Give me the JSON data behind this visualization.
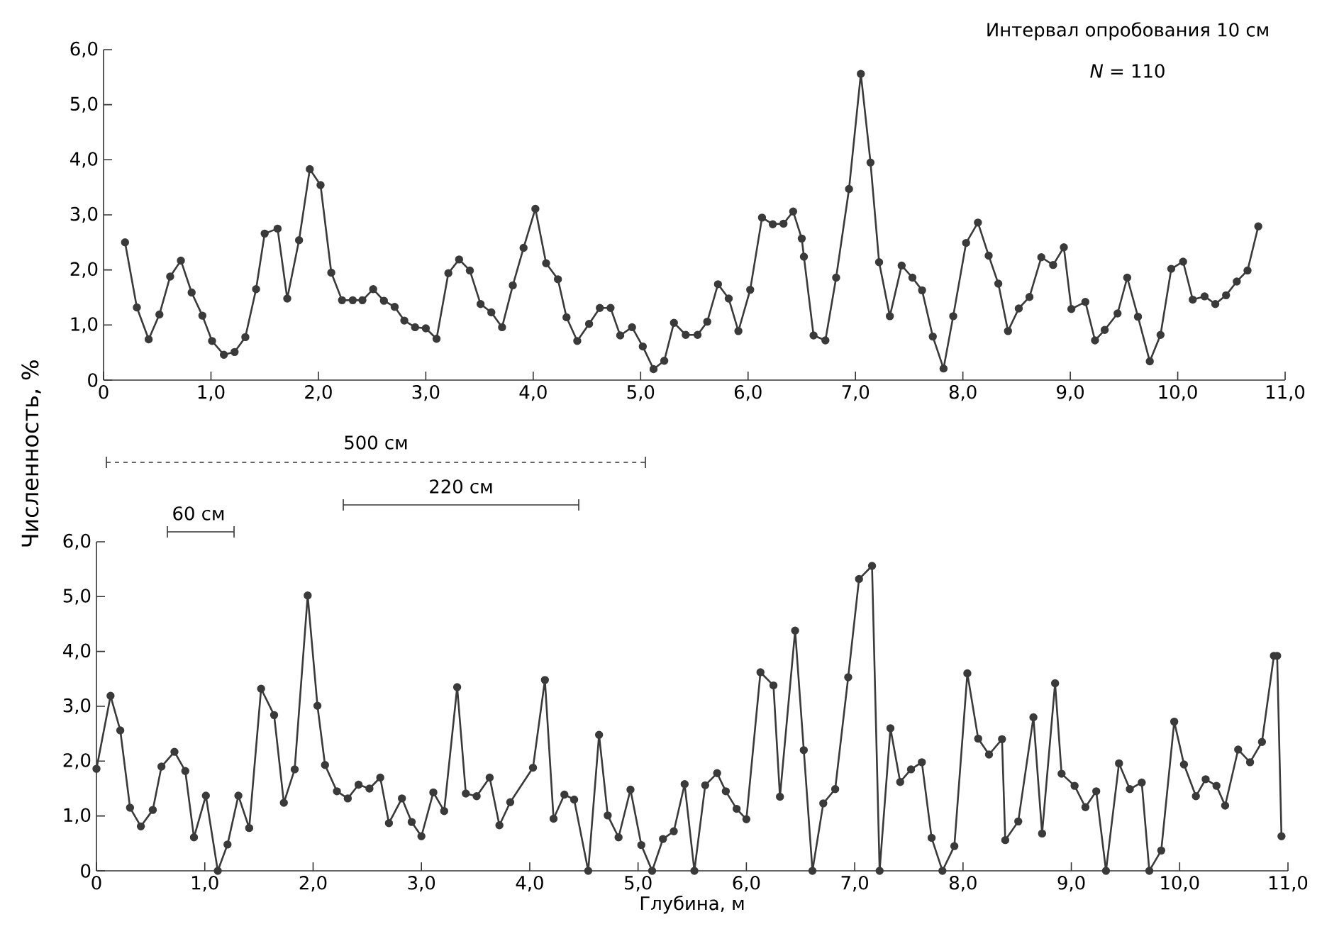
{
  "chart_data": [
    {
      "type": "line",
      "ylabel": "Численность, %",
      "marker": "circle",
      "line_style": "solid",
      "annotations": [
        "Интервал опробования 10 см",
        "*N* = 110",
        "500 см",
        "220 см"
      ],
      "x": [
        0.2,
        0.31,
        0.42,
        0.52,
        0.62,
        0.72,
        0.82,
        0.92,
        1.01,
        1.12,
        1.22,
        1.32,
        1.42,
        1.5,
        1.62,
        1.71,
        1.82,
        1.92,
        2.02,
        2.12,
        2.22,
        2.32,
        2.41,
        2.51,
        2.61,
        2.71,
        2.8,
        2.9,
        3.0,
        3.1,
        3.21,
        3.31,
        3.41,
        3.51,
        3.61,
        3.71,
        3.81,
        3.91,
        4.02,
        4.12,
        4.23,
        4.31,
        4.41,
        4.52,
        4.62,
        4.72,
        4.81,
        4.92,
        5.02,
        5.12,
        5.22,
        5.31,
        5.42,
        5.53,
        5.62,
        5.72,
        5.82,
        5.91,
        6.02,
        6.13,
        6.23,
        6.33,
        6.42,
        6.5,
        6.52,
        6.61,
        6.72,
        6.82,
        6.94,
        7.05,
        7.14,
        7.22,
        7.32,
        7.43,
        7.53,
        7.62,
        7.72,
        7.82,
        7.91,
        8.03,
        8.14,
        8.24,
        8.33,
        8.42,
        8.52,
        8.62,
        8.73,
        8.84,
        8.94,
        9.01,
        9.14,
        9.23,
        9.32,
        9.44,
        9.53,
        9.63,
        9.74,
        9.84,
        9.94,
        10.05,
        10.14,
        10.25,
        10.35,
        10.45,
        10.55,
        10.65,
        10.75
      ],
      "series": [
        {
          "color": "#3a3a3a",
          "values": [
            2.5,
            1.32,
            0.74,
            1.19,
            1.88,
            2.17,
            1.59,
            1.17,
            0.71,
            0.46,
            0.51,
            0.78,
            1.65,
            2.66,
            2.75,
            1.48,
            2.54,
            3.83,
            3.54,
            1.95,
            1.45,
            1.45,
            1.45,
            1.65,
            1.44,
            1.33,
            1.08,
            0.96,
            0.94,
            0.75,
            1.94,
            2.19,
            1.99,
            1.38,
            1.23,
            0.96,
            1.72,
            2.4,
            3.11,
            2.12,
            1.83,
            1.14,
            0.71,
            1.02,
            1.31,
            1.31,
            0.81,
            0.96,
            0.61,
            0.2,
            0.35,
            1.04,
            0.82,
            0.82,
            1.06,
            1.74,
            1.48,
            0.89,
            1.64,
            2.95,
            2.83,
            2.84,
            3.06,
            2.57,
            2.24,
            0.81,
            0.72,
            1.86,
            3.47,
            5.56,
            3.95,
            2.14,
            1.16,
            2.08,
            1.86,
            1.63,
            0.79,
            0.21,
            1.16,
            2.49,
            2.86,
            2.26,
            1.75,
            0.89,
            1.3,
            1.51,
            2.23,
            2.09,
            2.41,
            1.29,
            1.42,
            0.72,
            0.91,
            1.21,
            1.86,
            1.15,
            0.34,
            0.82,
            2.02,
            2.15,
            1.46,
            1.52,
            1.38,
            1.54,
            1.79,
            1.99,
            2.79
          ]
        }
      ],
      "xlim": [
        0,
        11
      ],
      "ylim": [
        0,
        6
      ],
      "xticks": [
        0,
        {
          "value": 1,
          "label": "1,0"
        },
        {
          "value": 2,
          "label": "2,0"
        },
        {
          "value": 3,
          "label": "3,0"
        },
        {
          "value": 4,
          "label": "4,0"
        },
        {
          "value": 5,
          "label": "5,0"
        },
        {
          "value": 6,
          "label": "6,0"
        },
        {
          "value": 7,
          "label": "7,0"
        },
        {
          "value": 8,
          "label": "8,0"
        },
        {
          "value": 9,
          "label": "9,0"
        },
        {
          "value": 10,
          "label": "10,0"
        },
        {
          "value": 11,
          "label": "11,0"
        }
      ],
      "yticks": [
        0,
        {
          "value": 1,
          "label": "1,0"
        },
        {
          "value": 2,
          "label": "2,0"
        },
        {
          "value": 3,
          "label": "3,0"
        },
        {
          "value": 4,
          "label": "4,0"
        },
        {
          "value": 5,
          "label": "5,0"
        },
        {
          "value": 6,
          "label": "6,0"
        }
      ]
    },
    {
      "type": "line",
      "xlabel": "Глубина, м",
      "marker": "circle",
      "line_style": "solid",
      "annotations": [
        "60 см"
      ],
      "x": [
        0.0,
        0.13,
        0.22,
        0.31,
        0.41,
        0.52,
        0.6,
        0.72,
        0.82,
        0.9,
        1.01,
        1.12,
        1.21,
        1.31,
        1.41,
        1.52,
        1.64,
        1.73,
        1.83,
        1.95,
        2.04,
        2.11,
        2.22,
        2.32,
        2.42,
        2.52,
        2.62,
        2.7,
        2.82,
        2.91,
        3.0,
        3.11,
        3.21,
        3.33,
        3.41,
        3.51,
        3.63,
        3.72,
        3.82,
        4.03,
        4.14,
        4.22,
        4.32,
        4.41,
        4.54,
        4.64,
        4.72,
        4.82,
        4.93,
        5.03,
        5.13,
        5.23,
        5.33,
        5.43,
        5.52,
        5.62,
        5.73,
        5.81,
        5.91,
        6.0,
        6.13,
        6.25,
        6.31,
        6.45,
        6.53,
        6.61,
        6.71,
        6.82,
        6.94,
        7.04,
        7.16,
        7.23,
        7.33,
        7.42,
        7.52,
        7.62,
        7.71,
        7.81,
        7.92,
        8.04,
        8.14,
        8.24,
        8.36,
        8.39,
        8.51,
        8.65,
        8.73,
        8.85,
        8.91,
        9.03,
        9.13,
        9.23,
        9.32,
        9.44,
        9.54,
        9.65,
        9.72,
        9.83,
        9.95,
        10.04,
        10.15,
        10.24,
        10.34,
        10.42,
        10.54,
        10.65,
        10.76,
        10.87,
        10.9,
        10.94
      ],
      "series": [
        {
          "color": "#3a3a3a",
          "values": [
            1.86,
            3.19,
            2.56,
            1.15,
            0.81,
            1.11,
            1.9,
            2.17,
            1.82,
            0.61,
            1.37,
            0,
            0.48,
            1.37,
            0.78,
            3.32,
            2.84,
            1.24,
            1.85,
            5.02,
            3.01,
            1.93,
            1.45,
            1.32,
            1.57,
            1.5,
            1.7,
            0.87,
            1.32,
            0.89,
            0.63,
            1.43,
            1.09,
            3.35,
            1.41,
            1.36,
            1.7,
            0.83,
            1.25,
            1.88,
            3.48,
            0.95,
            1.39,
            1.3,
            0,
            2.48,
            1.01,
            0.61,
            1.48,
            0.47,
            0,
            0.58,
            0.72,
            1.58,
            0,
            1.56,
            1.78,
            1.45,
            1.13,
            0.94,
            3.62,
            3.38,
            1.35,
            4.38,
            2.2,
            0,
            1.23,
            1.49,
            3.53,
            5.32,
            5.56,
            0,
            2.6,
            1.62,
            1.85,
            1.98,
            0.6,
            0,
            0.45,
            3.6,
            2.41,
            2.12,
            2.4,
            0.56,
            0.9,
            2.8,
            0.68,
            3.42,
            1.77,
            1.55,
            1.16,
            1.45,
            0,
            1.96,
            1.49,
            1.61,
            0,
            0.37,
            2.72,
            1.94,
            1.36,
            1.67,
            1.55,
            1.19,
            2.21,
            1.98,
            2.35,
            3.92,
            3.92,
            0.63
          ]
        }
      ],
      "xlim": [
        0,
        11
      ],
      "ylim": [
        0,
        6
      ],
      "xticks": [
        0,
        {
          "value": 1,
          "label": "1,0"
        },
        {
          "value": 2,
          "label": "2,0"
        },
        {
          "value": 3,
          "label": "3,0"
        },
        {
          "value": 4,
          "label": "4,0"
        },
        {
          "value": 5,
          "label": "5,0"
        },
        {
          "value": 6,
          "label": "6,0"
        },
        {
          "value": 7,
          "label": "7,0"
        },
        {
          "value": 8,
          "label": "8,0"
        },
        {
          "value": 9,
          "label": "9,0"
        },
        {
          "value": 10,
          "label": "10,0"
        },
        {
          "value": 11,
          "label": "11,0"
        }
      ],
      "yticks": [
        0,
        {
          "value": 1,
          "label": "1,0"
        },
        {
          "value": 2,
          "label": "2,0"
        },
        {
          "value": 3,
          "label": "3,0"
        },
        {
          "value": 4,
          "label": "4,0"
        },
        {
          "value": 5,
          "label": "5,0"
        },
        {
          "value": 6,
          "label": "6,0"
        }
      ]
    }
  ]
}
